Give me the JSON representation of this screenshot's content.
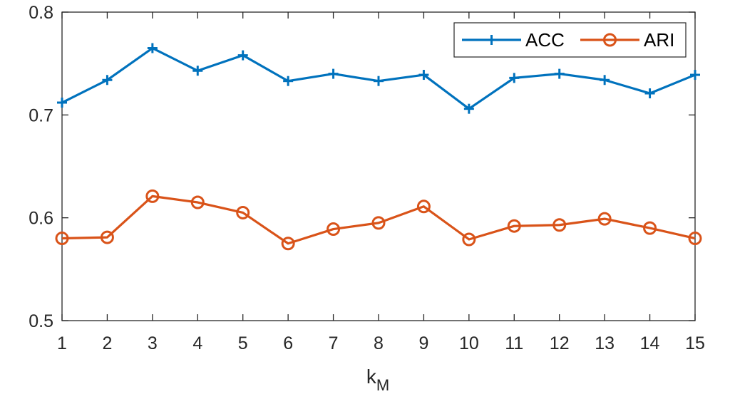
{
  "chart_data": {
    "type": "line",
    "title": "",
    "xlabel": {
      "main": "k",
      "subscript": "M"
    },
    "ylabel": "",
    "x": [
      1,
      2,
      3,
      4,
      5,
      6,
      7,
      8,
      9,
      10,
      11,
      12,
      13,
      14,
      15
    ],
    "xlim": [
      1,
      15
    ],
    "ylim": [
      0.5,
      0.8
    ],
    "x_ticks": [
      "1",
      "2",
      "3",
      "4",
      "5",
      "6",
      "7",
      "8",
      "9",
      "10",
      "11",
      "12",
      "13",
      "14",
      "15"
    ],
    "y_ticks": [
      "0.5",
      "0.6",
      "0.7",
      "0.8"
    ],
    "grid": false,
    "legend_position": "top-right",
    "series": [
      {
        "name": "ACC",
        "color": "#0072BD",
        "marker": "plus",
        "values": [
          0.712,
          0.734,
          0.765,
          0.743,
          0.758,
          0.733,
          0.74,
          0.733,
          0.739,
          0.706,
          0.736,
          0.74,
          0.734,
          0.721,
          0.739
        ]
      },
      {
        "name": "ARI",
        "color": "#D95319",
        "marker": "circle",
        "values": [
          0.58,
          0.581,
          0.621,
          0.615,
          0.605,
          0.575,
          0.589,
          0.595,
          0.611,
          0.579,
          0.592,
          0.593,
          0.599,
          0.59,
          0.58
        ]
      }
    ]
  }
}
